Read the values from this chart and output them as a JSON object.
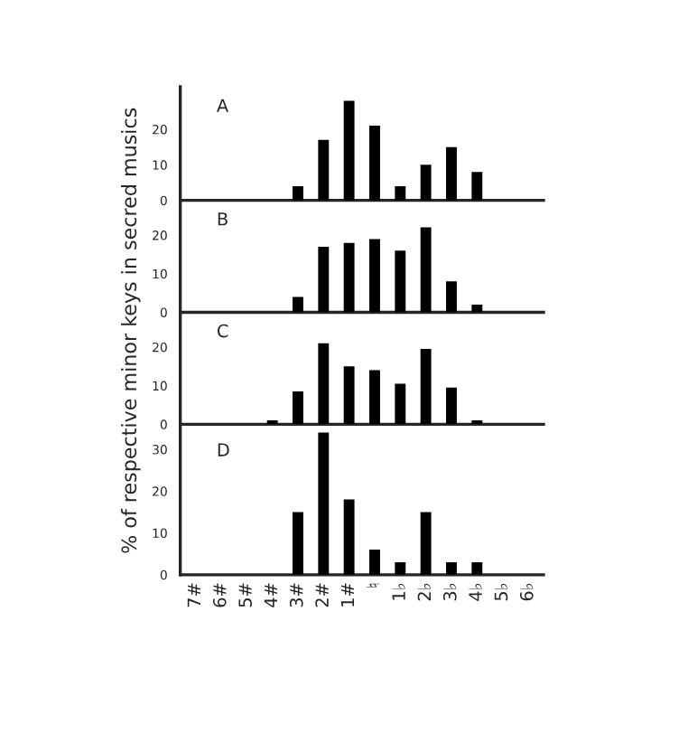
{
  "chart_data": [
    {
      "type": "bar",
      "categories": [
        null,
        null,
        null,
        null,
        null,
        null,
        null,
        null,
        null,
        null,
        null,
        null,
        null,
        null
      ],
      "values": [
        0,
        0,
        0,
        0,
        4,
        17,
        28,
        21,
        4,
        10,
        15,
        8,
        0,
        0
      ],
      "color": "#000000",
      "ylim": [
        0,
        32
      ],
      "yticks": [
        0,
        10,
        20
      ],
      "annotations": [
        "A"
      ],
      "ylabel": "% of respective minor keys in secred musics",
      "tick_labels": "y",
      "grid": false,
      "legend": false
    },
    {
      "type": "bar",
      "categories": [
        null,
        null,
        null,
        null,
        null,
        null,
        null,
        null,
        null,
        null,
        null,
        null,
        null,
        null
      ],
      "values": [
        0,
        0,
        0,
        0,
        4,
        17,
        18,
        19,
        16,
        22,
        8,
        2,
        0,
        0
      ],
      "color": "#000000",
      "ylim": [
        0,
        29
      ],
      "yticks": [
        0,
        10,
        20
      ],
      "annotations": [
        "B"
      ],
      "tick_labels": "y",
      "grid": false,
      "legend": false
    },
    {
      "type": "bar",
      "categories": [
        null,
        null,
        null,
        null,
        null,
        null,
        null,
        null,
        null,
        null,
        null,
        null,
        null,
        null
      ],
      "values": [
        0,
        0,
        0,
        1,
        8.5,
        21,
        15,
        14,
        10.5,
        19.5,
        9.5,
        1,
        0,
        0
      ],
      "color": "#000000",
      "ylim": [
        0,
        29
      ],
      "yticks": [
        0,
        10,
        20
      ],
      "annotations": [
        "C"
      ],
      "tick_labels": "y",
      "grid": false,
      "legend": false
    },
    {
      "type": "bar",
      "categories": [
        "7#",
        "6#",
        "5#",
        "4#",
        "3#",
        "2#",
        "1#",
        "♮",
        "1♭",
        "2♭",
        "3♭",
        "4♭",
        "5♭",
        "6♭"
      ],
      "values": [
        0,
        0,
        0,
        0,
        15,
        34,
        18,
        6,
        3,
        15,
        3,
        3,
        0,
        0
      ],
      "color": "#000000",
      "ylim": [
        0,
        36
      ],
      "yticks": [
        0,
        10,
        20,
        30
      ],
      "annotations": [
        "D"
      ],
      "grid": false,
      "legend": false
    }
  ]
}
